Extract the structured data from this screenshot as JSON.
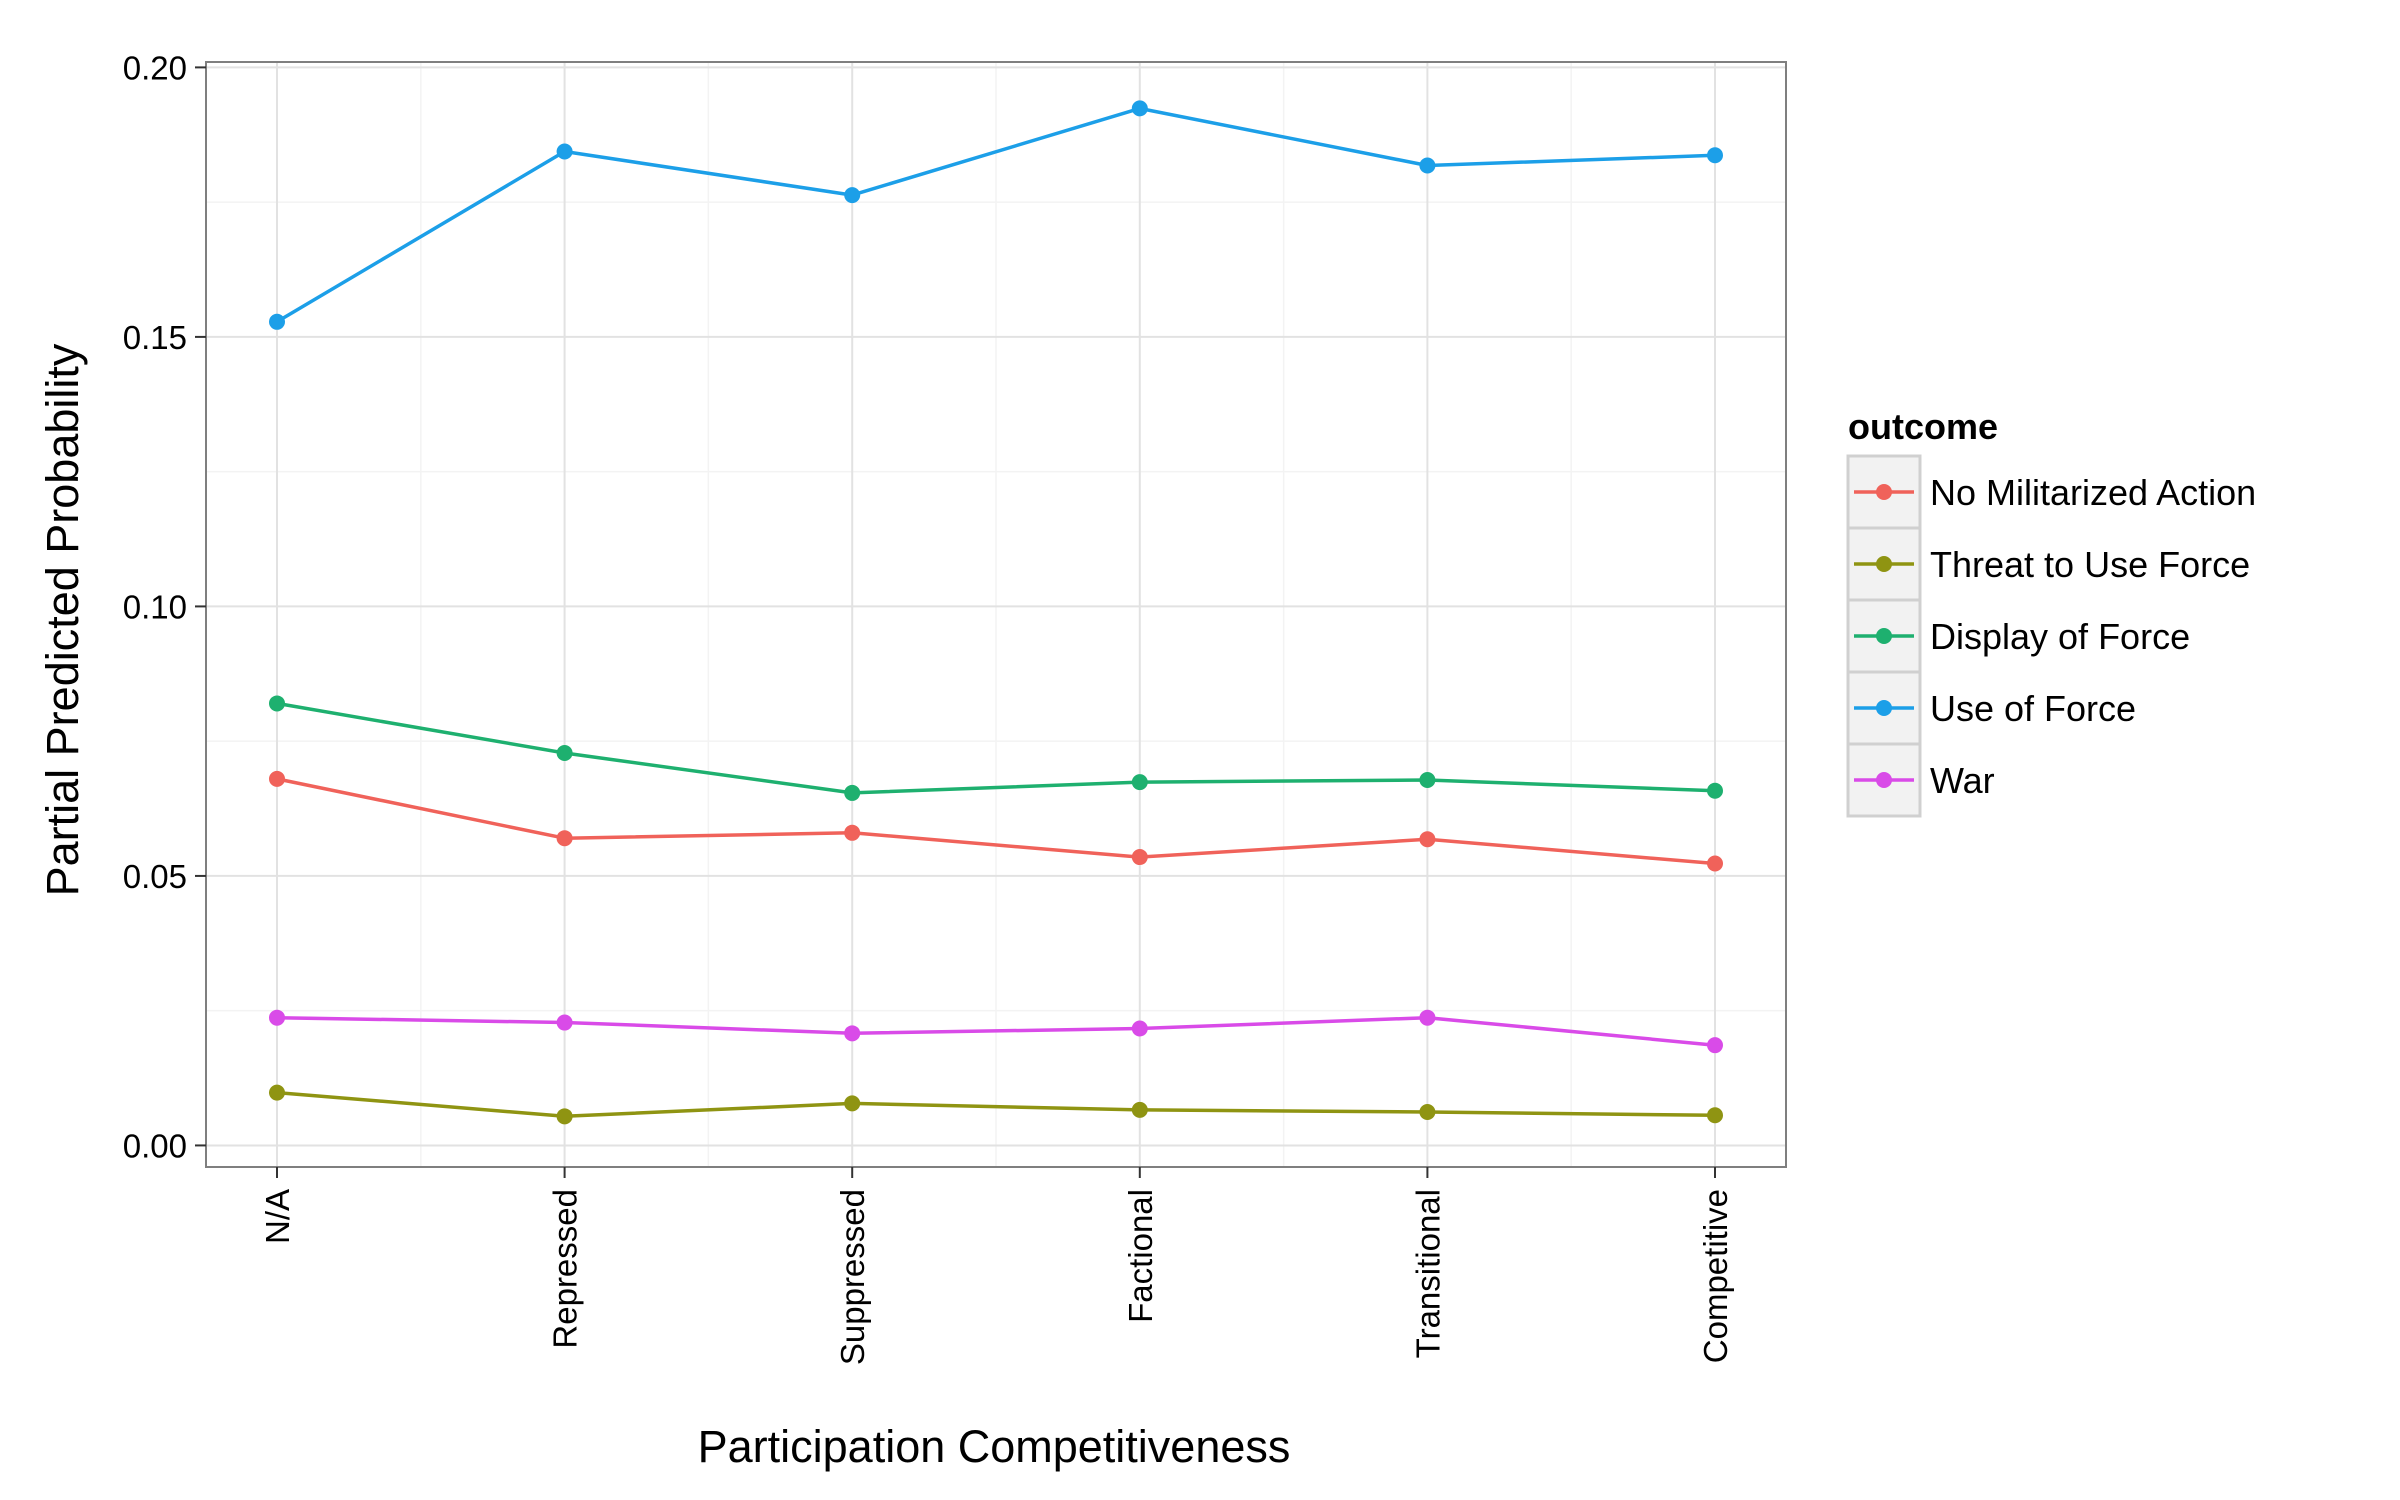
{
  "chart_data": {
    "type": "line",
    "title": "",
    "xlabel": "Participation Competitiveness",
    "ylabel": "Partial Predicted Probability",
    "categories": [
      "N/A",
      "Repressed",
      "Suppressed",
      "Factional",
      "Transitional",
      "Competitive"
    ],
    "ylim": [
      -0.004,
      0.201
    ],
    "yticks": [
      0.0,
      0.05,
      0.1,
      0.15,
      0.2
    ],
    "ytick_labels": [
      "0.00",
      "0.05",
      "0.10",
      "0.15",
      "0.20"
    ],
    "grid": true,
    "legend": {
      "title": "outcome",
      "position": "right"
    },
    "series": [
      {
        "name": "No Militarized Action",
        "color": "#F0625A",
        "values": [
          0.068,
          0.057,
          0.058,
          0.0535,
          0.0568,
          0.0523
        ]
      },
      {
        "name": "Threat to Use Force",
        "color": "#8F9412",
        "values": [
          0.0098,
          0.0054,
          0.0078,
          0.0066,
          0.0062,
          0.0056
        ]
      },
      {
        "name": "Display of Force",
        "color": "#1EB06F",
        "values": [
          0.082,
          0.0728,
          0.0654,
          0.0674,
          0.0678,
          0.0658
        ]
      },
      {
        "name": "Use of Force",
        "color": "#1C9FE8",
        "values": [
          0.1528,
          0.1844,
          0.1763,
          0.1924,
          0.1818,
          0.1837
        ]
      },
      {
        "name": "War",
        "color": "#D94BE8",
        "values": [
          0.0237,
          0.0228,
          0.0208,
          0.0217,
          0.0237,
          0.0186
        ]
      }
    ]
  }
}
